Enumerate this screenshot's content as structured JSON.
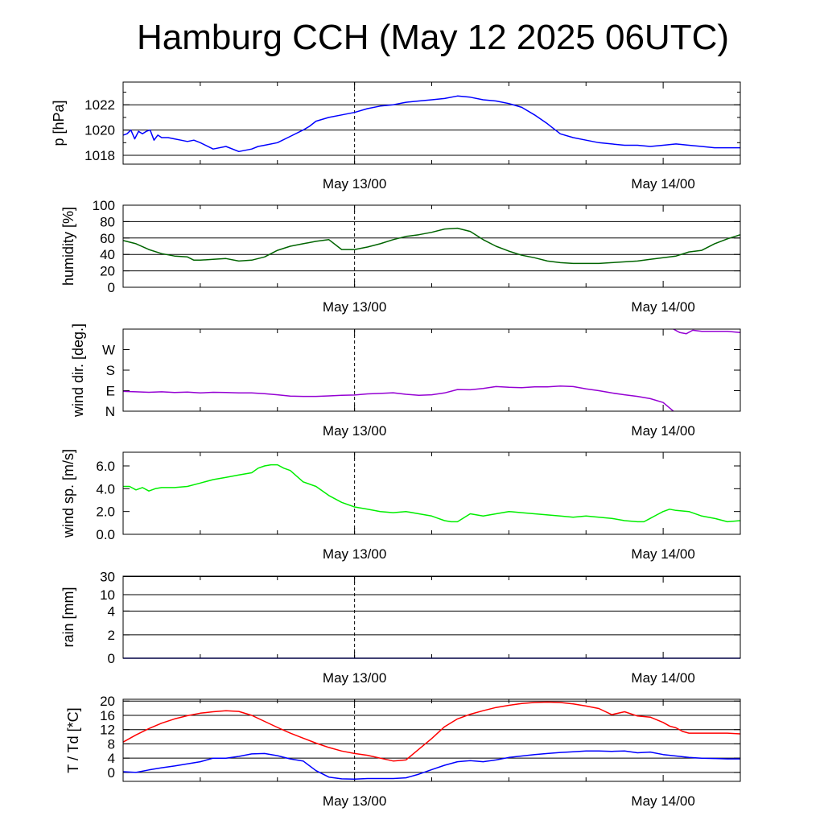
{
  "title": "Hamburg CCH (May 12 2025 06UTC)",
  "date_labels": [
    "May 13/00",
    "May 14/00"
  ],
  "chart_data": [
    {
      "type": "line",
      "ylabel": "p [hPa]",
      "x_range": [
        6,
        54
      ],
      "ylim": [
        1017.3,
        1023.8
      ],
      "yticks": [
        1018,
        1020,
        1022
      ],
      "grid": true,
      "series": [
        {
          "color": "#0000ff",
          "x": [
            6,
            6.3,
            6.6,
            6.9,
            7.2,
            7.5,
            7.8,
            8.1,
            8.4,
            8.7,
            9,
            9.5,
            10,
            10.5,
            11,
            11.5,
            12,
            13,
            14,
            15,
            16,
            16.5,
            17,
            18,
            19,
            20,
            20.5,
            21,
            22,
            23,
            24,
            25,
            26,
            27,
            28,
            29,
            30,
            31,
            32,
            33,
            34,
            35,
            36,
            37,
            38,
            39,
            40,
            41,
            42,
            43,
            44,
            45,
            46,
            47,
            48,
            49,
            50,
            51,
            52,
            53,
            54
          ],
          "y": [
            1019.6,
            1019.7,
            1020.0,
            1019.3,
            1019.9,
            1019.7,
            1019.9,
            1020.0,
            1019.2,
            1019.6,
            1019.4,
            1019.4,
            1019.3,
            1019.2,
            1019.1,
            1019.2,
            1019.0,
            1018.5,
            1018.7,
            1018.3,
            1018.5,
            1018.7,
            1018.8,
            1019.0,
            1019.5,
            1020.0,
            1020.3,
            1020.7,
            1021.0,
            1021.2,
            1021.4,
            1021.7,
            1021.9,
            1022.0,
            1022.2,
            1022.3,
            1022.4,
            1022.5,
            1022.7,
            1022.6,
            1022.4,
            1022.3,
            1022.1,
            1021.8,
            1021.2,
            1020.5,
            1019.7,
            1019.4,
            1019.2,
            1019.0,
            1018.9,
            1018.8,
            1018.8,
            1018.7,
            1018.8,
            1018.9,
            1018.8,
            1018.7,
            1018.6,
            1018.6,
            1018.6
          ]
        }
      ]
    },
    {
      "type": "line",
      "ylabel": "humidity [%]",
      "x_range": [
        6,
        54
      ],
      "ylim": [
        0,
        100
      ],
      "yticks": [
        0,
        20,
        40,
        60,
        80,
        100
      ],
      "grid": true,
      "series": [
        {
          "color": "#006400",
          "x": [
            6,
            7,
            8,
            9,
            10,
            11,
            11.5,
            12,
            13,
            14,
            15,
            16,
            17,
            18,
            19,
            20,
            21,
            22,
            23,
            24,
            25,
            26,
            27,
            28,
            29,
            30,
            31,
            32,
            33,
            34,
            35,
            36,
            37,
            38,
            39,
            40,
            41,
            42,
            43,
            44,
            45,
            46,
            47,
            48,
            49,
            50,
            50.5,
            51,
            52,
            53,
            54
          ],
          "y": [
            57,
            53,
            46,
            41,
            38,
            37,
            33,
            33,
            34,
            35,
            32,
            33,
            37,
            45,
            50,
            53,
            56,
            58,
            46,
            46,
            49,
            53,
            58,
            62,
            64,
            67,
            71,
            72,
            68,
            58,
            50,
            44,
            39,
            36,
            32,
            30,
            29,
            29,
            29,
            30,
            31,
            32,
            34,
            36,
            38,
            43,
            44,
            45,
            53,
            59,
            64
          ]
        }
      ]
    },
    {
      "type": "line",
      "ylabel": "wind dir. [deg.]",
      "x_range": [
        6,
        54
      ],
      "ylim": [
        0,
        360
      ],
      "yticks": [
        0,
        90,
        180,
        270
      ],
      "ytick_labels": [
        "N",
        "E",
        "S",
        "W"
      ],
      "grid": false,
      "series": [
        {
          "color": "#9400d3",
          "x": [
            6,
            7,
            8,
            9,
            10,
            11,
            12,
            13,
            14,
            15,
            16,
            17,
            18,
            19,
            20,
            21,
            22,
            23,
            24,
            25,
            26,
            27,
            28,
            29,
            30,
            31,
            32,
            33,
            34,
            35,
            36,
            37,
            38,
            39,
            40,
            41,
            42,
            43,
            44,
            45,
            46,
            47,
            48,
            48.8
          ],
          "y": [
            87,
            85,
            83,
            85,
            82,
            84,
            80,
            83,
            82,
            80,
            80,
            77,
            72,
            66,
            65,
            65,
            67,
            70,
            71,
            76,
            78,
            81,
            74,
            70,
            72,
            80,
            95,
            94,
            100,
            108,
            105,
            103,
            107,
            107,
            110,
            108,
            98,
            90,
            80,
            72,
            65,
            55,
            38,
            0
          ]
        },
        {
          "color": "#9400d3",
          "x": [
            48.8,
            49.3,
            49.8,
            50.3,
            51,
            52,
            53,
            54
          ],
          "y": [
            360,
            345,
            340,
            355,
            350,
            350,
            350,
            345
          ]
        }
      ]
    },
    {
      "type": "line",
      "ylabel": "wind sp. [m/s]",
      "x_range": [
        6,
        54
      ],
      "ylim": [
        0,
        7.2
      ],
      "yticks": [
        0.0,
        2.0,
        4.0,
        6.0
      ],
      "ytick_labels": [
        "0.0",
        "2.0",
        "4.0",
        "6.0"
      ],
      "grid": false,
      "series": [
        {
          "color": "#00ee00",
          "x": [
            6,
            6.5,
            7,
            7.5,
            8,
            8.5,
            9,
            10,
            11,
            12,
            13,
            14,
            15,
            16,
            16.5,
            17,
            17.5,
            18,
            18.5,
            19,
            20,
            21,
            22,
            23,
            24,
            25,
            26,
            27,
            28,
            29,
            30,
            30.5,
            31,
            31.5,
            32,
            33,
            34,
            35,
            36,
            37,
            38,
            39,
            40,
            41,
            42,
            43,
            44,
            45,
            46,
            46.5,
            47,
            47.5,
            48,
            48.5,
            49,
            50,
            51,
            52,
            53,
            54
          ],
          "y": [
            4.2,
            4.2,
            3.9,
            4.1,
            3.8,
            4.0,
            4.1,
            4.1,
            4.2,
            4.5,
            4.8,
            5.0,
            5.2,
            5.4,
            5.8,
            6.0,
            6.1,
            6.1,
            5.8,
            5.6,
            4.6,
            4.2,
            3.4,
            2.8,
            2.4,
            2.2,
            2.0,
            1.9,
            2.0,
            1.8,
            1.6,
            1.4,
            1.2,
            1.1,
            1.1,
            1.8,
            1.6,
            1.8,
            2.0,
            1.9,
            1.8,
            1.7,
            1.6,
            1.5,
            1.6,
            1.5,
            1.4,
            1.2,
            1.1,
            1.1,
            1.4,
            1.7,
            2.0,
            2.2,
            2.1,
            2.0,
            1.6,
            1.4,
            1.1,
            1.2
          ]
        }
      ]
    },
    {
      "type": "line",
      "ylabel": "rain [mm]",
      "x_range": [
        6,
        54
      ],
      "scale": "nonlinear",
      "ylim": [
        0,
        30
      ],
      "yticks": [
        0,
        2,
        4,
        10,
        30
      ],
      "grid": true,
      "series": [
        {
          "color": "#0000cd",
          "x": [
            6,
            54
          ],
          "y": [
            0,
            0
          ]
        }
      ]
    },
    {
      "type": "line",
      "ylabel": "T / Td [*C]",
      "x_range": [
        6,
        54
      ],
      "ylim": [
        -2.5,
        20.5
      ],
      "yticks": [
        0,
        4,
        8,
        12,
        16,
        20
      ],
      "grid": true,
      "series": [
        {
          "name": "T",
          "color": "#ff0000",
          "x": [
            6,
            7,
            8,
            9,
            10,
            11,
            12,
            13,
            14,
            15,
            16,
            17,
            18,
            19,
            20,
            21,
            22,
            23,
            24,
            25,
            26,
            27,
            28,
            29,
            30,
            31,
            32,
            33,
            34,
            35,
            36,
            37,
            38,
            39,
            40,
            41,
            42,
            43,
            44,
            45,
            46,
            47,
            48,
            48.5,
            49,
            49.5,
            50,
            51,
            52,
            53,
            54
          ],
          "y": [
            8.5,
            10.5,
            12.3,
            13.8,
            15.0,
            15.9,
            16.6,
            17.0,
            17.3,
            17.1,
            16.0,
            14.3,
            12.6,
            11.0,
            9.6,
            8.2,
            7.0,
            6.0,
            5.3,
            4.8,
            4.0,
            3.2,
            3.5,
            6.5,
            9.5,
            12.8,
            15.0,
            16.3,
            17.3,
            18.2,
            18.8,
            19.3,
            19.6,
            19.7,
            19.6,
            19.2,
            18.6,
            17.9,
            16.2,
            17.0,
            15.8,
            15.5,
            14.0,
            13.0,
            12.5,
            11.5,
            11.0,
            11.0,
            11.0,
            11.0,
            10.8
          ]
        },
        {
          "name": "Td",
          "color": "#0000ff",
          "x": [
            6,
            7,
            8,
            9,
            10,
            11,
            12,
            13,
            14,
            15,
            16,
            17,
            18,
            19,
            20,
            21,
            22,
            23,
            24,
            25,
            26,
            27,
            28,
            29,
            30,
            31,
            32,
            33,
            34,
            35,
            36,
            37,
            38,
            39,
            40,
            41,
            42,
            43,
            44,
            45,
            46,
            47,
            48,
            49,
            50,
            51,
            52,
            53,
            54
          ],
          "y": [
            0.2,
            0.0,
            0.7,
            1.3,
            1.8,
            2.4,
            3.0,
            4.0,
            4.0,
            4.5,
            5.2,
            5.3,
            4.7,
            3.8,
            3.2,
            0.5,
            -1.3,
            -1.8,
            -1.9,
            -1.7,
            -1.7,
            -1.7,
            -1.5,
            -0.5,
            0.8,
            2.0,
            3.0,
            3.3,
            3.0,
            3.5,
            4.2,
            4.6,
            5.0,
            5.3,
            5.6,
            5.8,
            6.0,
            6.0,
            5.9,
            6.0,
            5.5,
            5.7,
            5.0,
            4.6,
            4.2,
            4.0,
            3.9,
            3.8,
            3.8
          ]
        }
      ]
    }
  ]
}
